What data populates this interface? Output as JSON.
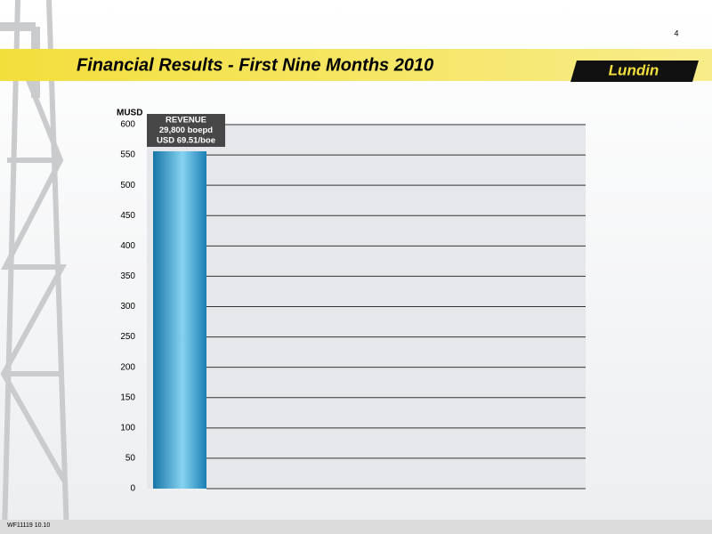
{
  "page_number": "4",
  "logo": "Lundin",
  "footer": "WF11119 10.10",
  "chart_data": {
    "type": "bar",
    "title": "Financial Results - First Nine Months 2010",
    "y_label": "MUSD",
    "categories": [
      null
    ],
    "values": [
      556
    ],
    "annotations": [
      "REVENUE",
      "29,800 boepd",
      "USD 69.51/boe"
    ],
    "color": "#2a93c6",
    "ylim": [
      0,
      600
    ],
    "yticks": [
      0,
      50,
      100,
      150,
      200,
      250,
      300,
      350,
      400,
      450,
      500,
      550,
      600
    ],
    "grid": true
  }
}
